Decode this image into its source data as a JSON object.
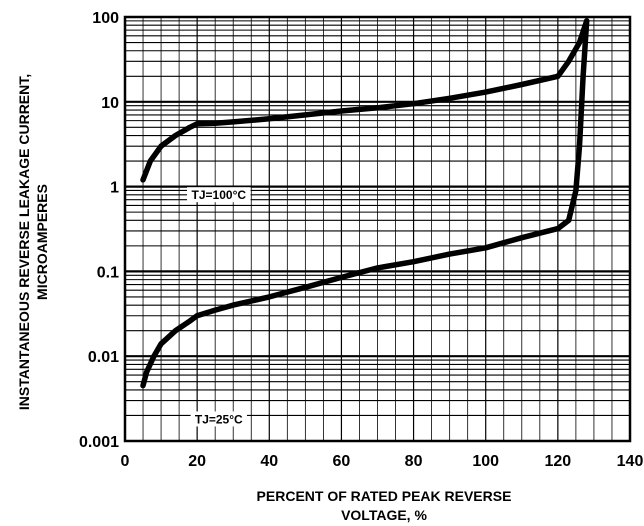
{
  "chart_data": {
    "type": "line",
    "title": "",
    "xlabel_lines": [
      "PERCENT OF RATED PEAK  REVERSE",
      "VOLTAGE, %"
    ],
    "ylabel_lines": [
      "INSTANTANEOUS REVERSE LEAKAGE CURRENT,",
      "MICROAMPERES"
    ],
    "x_ticks": [
      "0",
      "20",
      "40",
      "60",
      "80",
      "100",
      "120",
      "140"
    ],
    "y_ticks": [
      "0.001",
      "0.01",
      "0.1",
      "1",
      "10",
      "100"
    ],
    "xlim": [
      0,
      140
    ],
    "ylim": [
      0.001,
      100
    ],
    "y_scale": "log",
    "grid": true,
    "series": [
      {
        "name": "TJ=100°C",
        "x": [
          5,
          7,
          10,
          14,
          18,
          20,
          25,
          30,
          40,
          50,
          60,
          70,
          80,
          90,
          100,
          110,
          120,
          123,
          126,
          128
        ],
        "y": [
          1.2,
          2.0,
          3.0,
          4.0,
          5.0,
          5.5,
          5.6,
          5.8,
          6.3,
          7.0,
          7.8,
          8.5,
          9.5,
          11,
          13,
          16,
          20,
          30,
          50,
          90
        ]
      },
      {
        "name": "TJ=25°C",
        "x": [
          5,
          6,
          8,
          10,
          14,
          18,
          20,
          25,
          30,
          40,
          50,
          60,
          70,
          80,
          90,
          100,
          110,
          120,
          123,
          125,
          126,
          127,
          128
        ],
        "y": [
          0.0045,
          0.0065,
          0.01,
          0.014,
          0.02,
          0.026,
          0.03,
          0.035,
          0.04,
          0.05,
          0.065,
          0.085,
          0.11,
          0.13,
          0.16,
          0.19,
          0.25,
          0.32,
          0.4,
          0.9,
          3,
          20,
          90
        ]
      }
    ],
    "annotations": [
      {
        "text": "TJ=100°C",
        "x": 26,
        "y": 0.75
      },
      {
        "text": "TJ=25°C",
        "x": 26,
        "y": 0.0017
      }
    ]
  }
}
